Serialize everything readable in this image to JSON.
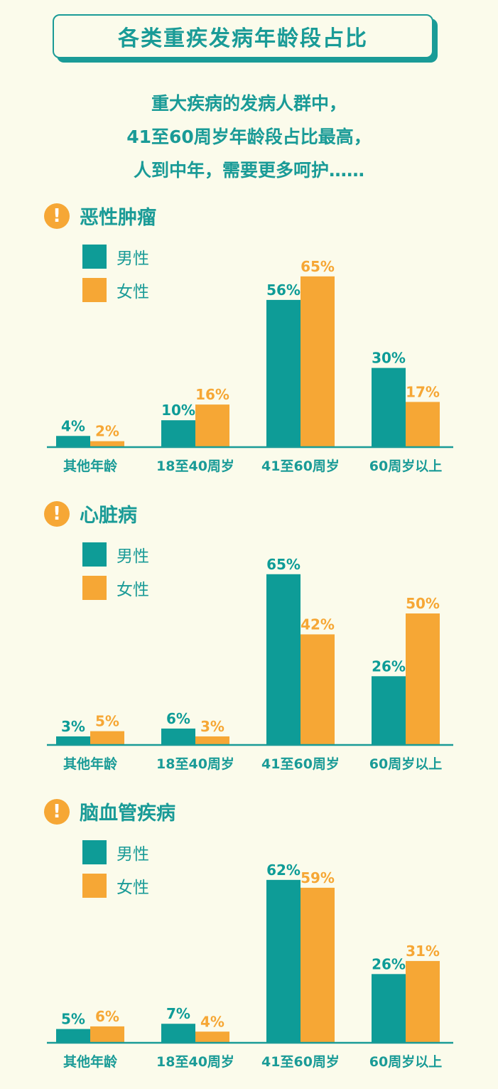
{
  "title": "各类重疾发病年龄段占比",
  "subtitle": [
    "重大疾病的发病人群中，",
    "41至60周岁年龄段占比最高，",
    "人到中年，需要更多呵护……"
  ],
  "colors": {
    "male": "#0e9c97",
    "female": "#f6a735",
    "text": "#1a9b97",
    "background": "#fbfbeb"
  },
  "legend": {
    "male": "男性",
    "female": "女性"
  },
  "charts": [
    {
      "title": "恶性肿瘤"
    },
    {
      "title": "心脏病"
    },
    {
      "title": "脑血管疾病"
    }
  ],
  "chart_data": [
    {
      "type": "bar",
      "title": "恶性肿瘤",
      "categories": [
        "其他年龄",
        "18至40周岁",
        "41至60周岁",
        "60周岁以上"
      ],
      "series": [
        {
          "name": "男性",
          "values": [
            4,
            10,
            56,
            30
          ],
          "labels": [
            "4%",
            "10%",
            "56%",
            "30%"
          ]
        },
        {
          "name": "女性",
          "values": [
            2,
            16,
            65,
            17
          ],
          "labels": [
            "2%",
            "16%",
            "65%",
            "17%"
          ]
        }
      ],
      "unit": "%"
    },
    {
      "type": "bar",
      "title": "心脏病",
      "categories": [
        "其他年龄",
        "18至40周岁",
        "41至60周岁",
        "60周岁以上"
      ],
      "series": [
        {
          "name": "男性",
          "values": [
            3,
            6,
            65,
            26
          ],
          "labels": [
            "3%",
            "6%",
            "65%",
            "26%"
          ]
        },
        {
          "name": "女性",
          "values": [
            5,
            3,
            42,
            50
          ],
          "labels": [
            "5%",
            "3%",
            "42%",
            "50%"
          ]
        }
      ],
      "unit": "%"
    },
    {
      "type": "bar",
      "title": "脑血管疾病",
      "categories": [
        "其他年龄",
        "18至40周岁",
        "41至60周岁",
        "60周岁以上"
      ],
      "series": [
        {
          "name": "男性",
          "values": [
            5,
            7,
            62,
            26
          ],
          "labels": [
            "5%",
            "7%",
            "62%",
            "26%"
          ]
        },
        {
          "name": "女性",
          "values": [
            6,
            4,
            59,
            31
          ],
          "labels": [
            "6%",
            "4%",
            "59%",
            "31%"
          ]
        }
      ],
      "unit": "%"
    }
  ]
}
